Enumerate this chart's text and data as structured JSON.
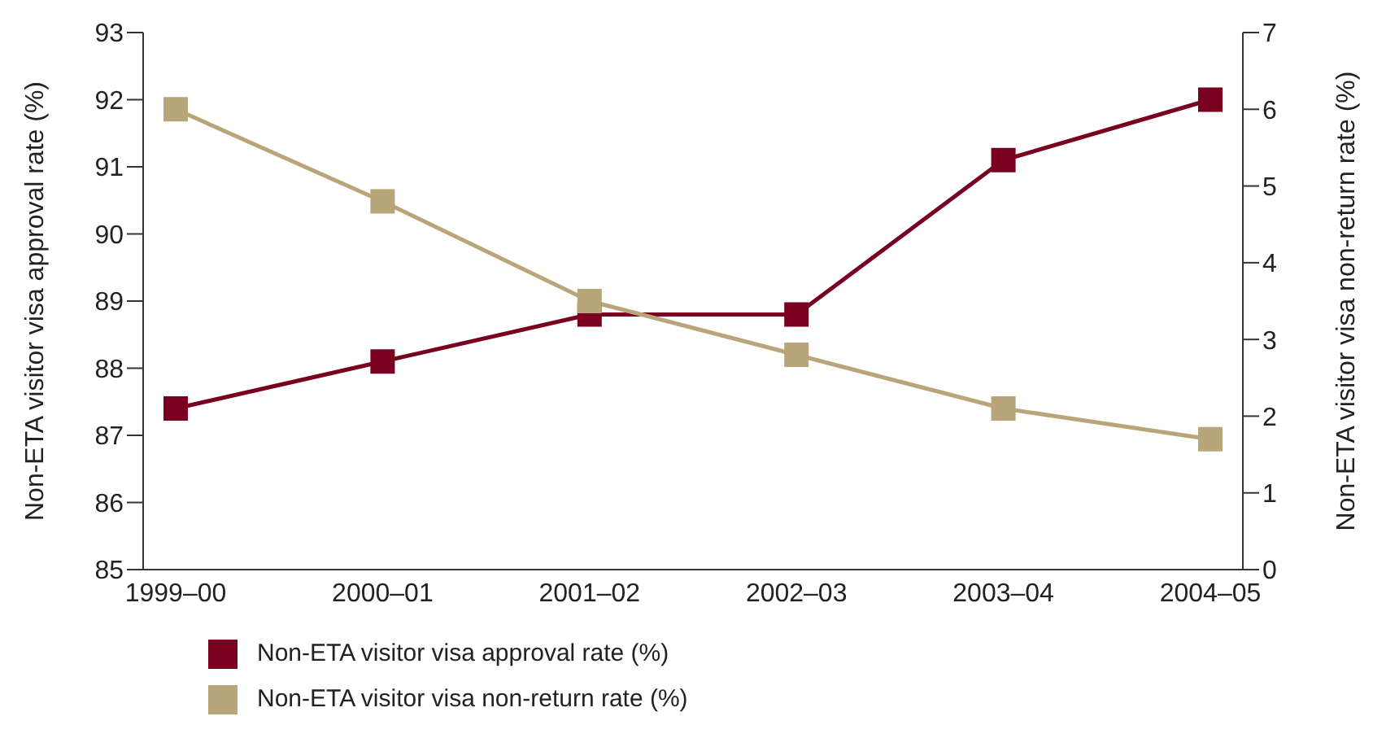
{
  "chart_data": {
    "type": "line",
    "categories": [
      "1999–00",
      "2000–01",
      "2001–02",
      "2002–03",
      "2003–04",
      "2004–05"
    ],
    "ylabel": "Non-ETA visitor visa approval rate (%)",
    "y2label": "Non-ETA visitor visa non-return rate (%)",
    "ylim": [
      85,
      93
    ],
    "yticks": [
      85,
      86,
      87,
      88,
      89,
      90,
      91,
      92,
      93
    ],
    "y2lim": [
      0,
      7
    ],
    "y2ticks": [
      0,
      1,
      2,
      3,
      4,
      5,
      6,
      7
    ],
    "series": [
      {
        "name": "Non-ETA visitor visa approval rate (%)",
        "color": "#7a0020",
        "values": [
          87.4,
          88.1,
          88.8,
          88.8,
          91.1,
          92.0
        ]
      },
      {
        "name": "Non-ETA visitor visa non-return rate (%)",
        "color": "#b8a57a",
        "axis": "y2",
        "values": [
          6.0,
          4.8,
          3.5,
          2.8,
          2.1,
          1.7
        ]
      }
    ],
    "marker": "square",
    "legend": "bottom left",
    "grid": false
  }
}
